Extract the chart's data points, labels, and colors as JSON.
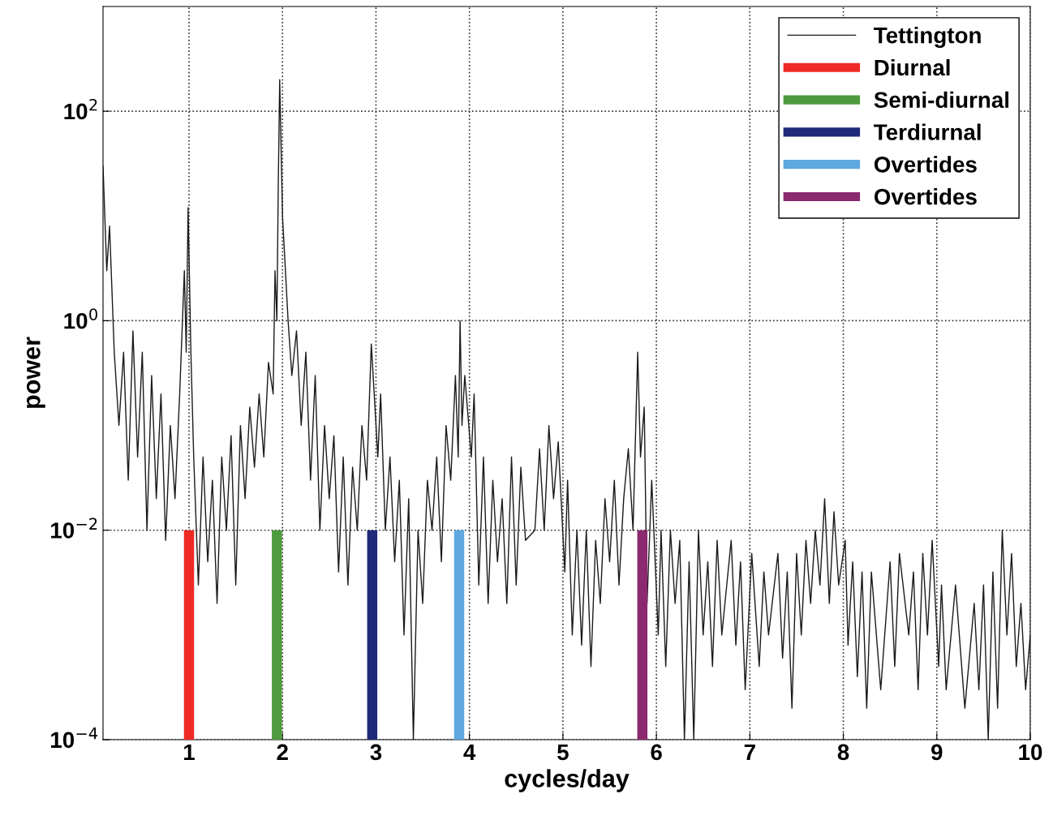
{
  "chart_data": {
    "type": "line",
    "xlabel": "cycles/day",
    "ylabel": "power",
    "log": "y",
    "grid": true,
    "legend": "top right",
    "line_style": "solid",
    "marker": "none",
    "xlim": [
      0.08,
      10
    ],
    "xticks": [
      1,
      2,
      3,
      4,
      5,
      6,
      7,
      8,
      9,
      10
    ],
    "ylim": [
      0.0001,
      1000
    ],
    "yticks": [
      {
        "value": 0.0001,
        "label": "10$^{−4}$"
      },
      {
        "value": 0.01,
        "label": "10$^{−2}$"
      },
      {
        "value": 1,
        "label": "10$^{0}$"
      },
      {
        "value": 100,
        "label": "10$^{2}$"
      }
    ],
    "series": [
      {
        "name": "Tettington",
        "color": "#1a1a1a",
        "x": [
          0.08,
          0.12,
          0.15,
          0.2,
          0.25,
          0.3,
          0.35,
          0.4,
          0.45,
          0.5,
          0.55,
          0.6,
          0.65,
          0.7,
          0.75,
          0.8,
          0.85,
          0.9,
          0.95,
          0.97,
          0.99,
          1.02,
          1.05,
          1.1,
          1.15,
          1.2,
          1.25,
          1.3,
          1.35,
          1.4,
          1.45,
          1.5,
          1.55,
          1.6,
          1.65,
          1.7,
          1.75,
          1.8,
          1.85,
          1.9,
          1.92,
          1.94,
          1.955,
          1.97,
          2.0,
          2.06,
          2.1,
          2.15,
          2.2,
          2.25,
          2.3,
          2.35,
          2.4,
          2.45,
          2.5,
          2.55,
          2.6,
          2.65,
          2.7,
          2.75,
          2.8,
          2.85,
          2.9,
          2.95,
          3.02,
          3.05,
          3.1,
          3.15,
          3.2,
          3.25,
          3.3,
          3.35,
          3.4,
          3.45,
          3.5,
          3.55,
          3.6,
          3.65,
          3.7,
          3.75,
          3.8,
          3.85,
          3.88,
          3.9,
          3.92,
          3.95,
          4.02,
          4.05,
          4.1,
          4.15,
          4.2,
          4.25,
          4.3,
          4.35,
          4.4,
          4.45,
          4.5,
          4.55,
          4.6,
          4.7,
          4.75,
          4.8,
          4.85,
          4.9,
          4.95,
          5.02,
          5.05,
          5.1,
          5.15,
          5.2,
          5.25,
          5.3,
          5.35,
          5.4,
          5.45,
          5.5,
          5.55,
          5.6,
          5.65,
          5.7,
          5.75,
          5.8,
          5.83,
          5.87,
          5.9,
          5.95,
          6.02,
          6.05,
          6.1,
          6.15,
          6.2,
          6.25,
          6.3,
          6.35,
          6.4,
          6.45,
          6.5,
          6.55,
          6.6,
          6.65,
          6.7,
          6.8,
          6.85,
          6.9,
          6.95,
          7.02,
          7.1,
          7.15,
          7.2,
          7.3,
          7.35,
          7.4,
          7.45,
          7.5,
          7.55,
          7.6,
          7.65,
          7.7,
          7.75,
          7.8,
          7.85,
          7.9,
          7.95,
          8.02,
          8.05,
          8.1,
          8.15,
          8.2,
          8.25,
          8.3,
          8.4,
          8.5,
          8.55,
          8.6,
          8.7,
          8.75,
          8.8,
          8.85,
          8.9,
          8.95,
          9.02,
          9.05,
          9.1,
          9.2,
          9.3,
          9.4,
          9.45,
          9.5,
          9.55,
          9.6,
          9.65,
          9.7,
          9.75,
          9.8,
          9.85,
          9.9,
          9.95,
          10.0
        ],
        "values": [
          30,
          3,
          8,
          0.5,
          0.1,
          0.5,
          0.03,
          0.8,
          0.05,
          0.5,
          0.01,
          0.3,
          0.02,
          0.2,
          0.008,
          0.1,
          0.02,
          0.2,
          3,
          0.5,
          12,
          0.5,
          0.05,
          0.003,
          0.05,
          0.005,
          0.03,
          0.002,
          0.05,
          0.01,
          0.08,
          0.003,
          0.1,
          0.02,
          0.15,
          0.04,
          0.2,
          0.05,
          0.4,
          0.2,
          3,
          1,
          20,
          200,
          10,
          1,
          0.3,
          0.8,
          0.1,
          0.5,
          0.03,
          0.3,
          0.01,
          0.1,
          0.02,
          0.08,
          0.004,
          0.05,
          0.003,
          0.04,
          0.01,
          0.1,
          0.03,
          0.6,
          0.05,
          0.2,
          0.01,
          0.05,
          0.005,
          0.03,
          0.001,
          0.02,
          0.0001,
          0.01,
          0.002,
          0.03,
          0.01,
          0.05,
          0.005,
          0.1,
          0.03,
          0.3,
          0.05,
          1,
          0.1,
          0.3,
          0.05,
          0.2,
          0.003,
          0.05,
          0.002,
          0.03,
          0.005,
          0.02,
          0.002,
          0.05,
          0.003,
          0.04,
          0.008,
          0.01,
          0.06,
          0.01,
          0.1,
          0.02,
          0.07,
          0.004,
          0.03,
          0.001,
          0.01,
          0.0008,
          0.01,
          0.0005,
          0.008,
          0.002,
          0.02,
          0.005,
          0.03,
          0.003,
          0.02,
          0.06,
          0.01,
          0.5,
          0.05,
          0.15,
          0.002,
          0.03,
          0.001,
          0.01,
          0.0005,
          0.01,
          0.002,
          0.008,
          0.0001,
          0.005,
          0.0001,
          0.01,
          0.001,
          0.005,
          0.0005,
          0.008,
          0.001,
          0.008,
          0.0008,
          0.005,
          0.0003,
          0.006,
          0.0005,
          0.004,
          0.001,
          0.006,
          0.0006,
          0.004,
          0.0002,
          0.006,
          0.001,
          0.008,
          0.002,
          0.01,
          0.003,
          0.02,
          0.002,
          0.015,
          0.003,
          0.008,
          0.0008,
          0.005,
          0.0004,
          0.004,
          0.0002,
          0.004,
          0.0003,
          0.005,
          0.0005,
          0.006,
          0.001,
          0.004,
          0.0003,
          0.006,
          0.001,
          0.008,
          0.0005,
          0.003,
          0.0003,
          0.003,
          0.0002,
          0.002,
          0.0003,
          0.003,
          0.0001,
          0.004,
          0.0002,
          0.01,
          0.001,
          0.006,
          0.0005,
          0.002,
          0.0003,
          0.001
        ]
      },
      {
        "name": "Diurnal",
        "type": "bar",
        "color": "#ee2a24",
        "x": [
          1.0
        ],
        "values": [
          0.01
        ]
      },
      {
        "name": "Semi-diurnal",
        "type": "bar",
        "color": "#4e9a3e",
        "x": [
          1.94
        ],
        "values": [
          0.01
        ]
      },
      {
        "name": "Terdiurnal",
        "type": "bar",
        "color": "#1f2a7a",
        "x": [
          2.96
        ],
        "values": [
          0.01
        ]
      },
      {
        "name": "Overtides",
        "type": "bar",
        "color": "#5fa8e0",
        "x": [
          3.89
        ],
        "values": [
          0.01
        ]
      },
      {
        "name": "Overtides",
        "type": "bar",
        "color": "#8b2a6e",
        "x": [
          5.85
        ],
        "values": [
          0.01
        ]
      }
    ]
  }
}
